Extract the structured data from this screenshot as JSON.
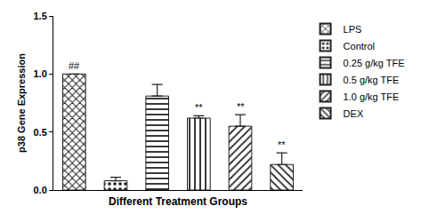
{
  "chart_data": {
    "type": "bar",
    "x_label": "Different Treatment Groups",
    "y_label": "p38 Gene Expression",
    "categories": [
      "LPS",
      "Control",
      "0.25 g/kg TFE",
      "0.5 g/kg TFE",
      "1.0 g/kg TFE",
      "DEX"
    ],
    "values": [
      1.0,
      0.08,
      0.81,
      0.62,
      0.55,
      0.22
    ],
    "error": [
      0,
      0.03,
      0.1,
      0.02,
      0.1,
      0.1
    ],
    "color": "#222222",
    "ylim": [
      0,
      1.5
    ],
    "yticks": [
      {
        "value": 0,
        "label": "0.0"
      },
      {
        "value": 0.5,
        "label": "0.5"
      },
      {
        "value": 1,
        "label": "1.0"
      },
      {
        "value": 1.5,
        "label": "1.5"
      }
    ],
    "grid": false,
    "legend": "right",
    "tick_labels": "y",
    "annotations": [
      {
        "category": "LPS",
        "text": "##"
      },
      {
        "category": "0.5 g/kg TFE",
        "text": "**"
      },
      {
        "category": "1.0 g/kg TFE",
        "text": "**"
      },
      {
        "category": "DEX",
        "text": "**"
      }
    ]
  }
}
